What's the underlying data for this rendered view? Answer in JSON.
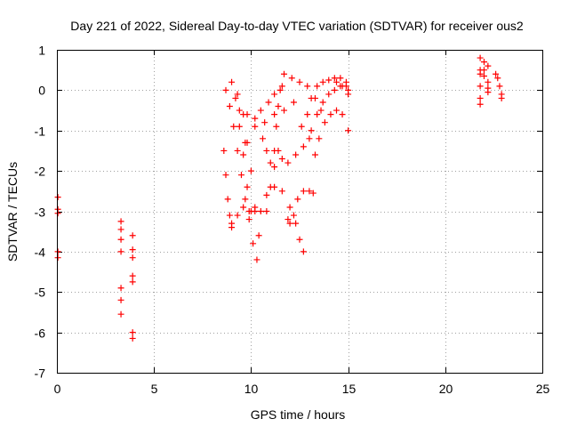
{
  "chart_data": {
    "type": "scatter",
    "title": "Day 221 of 2022, Sidereal Day-to-day VTEC variation (SDTVAR) for receiver ous2",
    "xlabel": "GPS time / hours",
    "ylabel": "SDTVAR / TECUs",
    "xlim": [
      0,
      25
    ],
    "ylim": [
      -7,
      1
    ],
    "xticks": [
      0,
      5,
      10,
      15,
      20,
      25
    ],
    "yticks": [
      -7,
      -6,
      -5,
      -4,
      -3,
      -2,
      -1,
      0,
      1
    ],
    "grid": true,
    "marker": "plus",
    "color": "#ff0000",
    "series": [
      {
        "points": [
          [
            0.05,
            -2.65
          ],
          [
            0.05,
            -2.95
          ],
          [
            0.05,
            -3.05
          ],
          [
            0.05,
            -4.0
          ],
          [
            0.05,
            -4.15
          ],
          [
            3.3,
            -3.25
          ],
          [
            3.3,
            -3.45
          ],
          [
            3.3,
            -3.7
          ],
          [
            3.3,
            -4.0
          ],
          [
            3.3,
            -4.9
          ],
          [
            3.3,
            -5.2
          ],
          [
            3.3,
            -5.55
          ],
          [
            3.9,
            -3.6
          ],
          [
            3.9,
            -3.95
          ],
          [
            3.9,
            -4.15
          ],
          [
            3.9,
            -4.6
          ],
          [
            3.9,
            -4.75
          ],
          [
            3.9,
            -6.0
          ],
          [
            3.9,
            -6.15
          ],
          [
            8.6,
            -1.5
          ],
          [
            8.7,
            -2.1
          ],
          [
            8.8,
            -2.7
          ],
          [
            8.9,
            -3.1
          ],
          [
            9.0,
            -3.4
          ],
          [
            8.7,
            0.0
          ],
          [
            8.9,
            -0.4
          ],
          [
            9.1,
            -0.9
          ],
          [
            9.3,
            -1.5
          ],
          [
            9.5,
            -2.1
          ],
          [
            9.7,
            -2.7
          ],
          [
            9.9,
            -3.2
          ],
          [
            10.1,
            -3.8
          ],
          [
            10.3,
            -4.2
          ],
          [
            9.0,
            0.2
          ],
          [
            9.3,
            -0.1
          ],
          [
            9.6,
            -0.6
          ],
          [
            9.8,
            -1.3
          ],
          [
            10.0,
            -2.0
          ],
          [
            10.2,
            -2.9
          ],
          [
            10.4,
            -3.6
          ],
          [
            9.2,
            -0.2
          ],
          [
            9.4,
            -0.9
          ],
          [
            9.6,
            -1.6
          ],
          [
            9.8,
            -2.4
          ],
          [
            10.0,
            -3.0
          ],
          [
            9.0,
            -3.3
          ],
          [
            9.3,
            -3.1
          ],
          [
            9.6,
            -2.9
          ],
          [
            9.9,
            -3.0
          ],
          [
            10.2,
            -3.0
          ],
          [
            10.5,
            -3.0
          ],
          [
            10.8,
            -2.6
          ],
          [
            11.2,
            -2.4
          ],
          [
            11.6,
            -2.5
          ],
          [
            12.0,
            -2.9
          ],
          [
            12.3,
            -3.3
          ],
          [
            12.5,
            -3.7
          ],
          [
            12.7,
            -4.0
          ],
          [
            10.8,
            -3.0
          ],
          [
            11.0,
            -2.4
          ],
          [
            11.2,
            -1.5
          ],
          [
            11.3,
            -0.9
          ],
          [
            11.4,
            -0.4
          ],
          [
            11.5,
            0.0
          ],
          [
            11.9,
            -3.2
          ],
          [
            12.0,
            -3.3
          ],
          [
            12.2,
            -3.1
          ],
          [
            12.4,
            -2.7
          ],
          [
            12.7,
            -2.5
          ],
          [
            13.0,
            -2.5
          ],
          [
            13.2,
            -2.55
          ],
          [
            11.7,
            0.4
          ],
          [
            12.1,
            0.3
          ],
          [
            12.5,
            0.2
          ],
          [
            12.9,
            0.1
          ],
          [
            13.3,
            -0.2
          ],
          [
            13.6,
            -0.5
          ],
          [
            9.4,
            -0.5
          ],
          [
            9.8,
            -0.6
          ],
          [
            10.2,
            -0.7
          ],
          [
            10.5,
            -0.5
          ],
          [
            10.9,
            -0.3
          ],
          [
            11.2,
            -0.1
          ],
          [
            11.6,
            0.1
          ],
          [
            9.7,
            -1.3
          ],
          [
            10.2,
            -0.9
          ],
          [
            10.7,
            -0.8
          ],
          [
            11.2,
            -0.6
          ],
          [
            11.7,
            -0.5
          ],
          [
            12.2,
            -0.3
          ],
          [
            10.6,
            -1.2
          ],
          [
            10.8,
            -1.5
          ],
          [
            11.0,
            -1.8
          ],
          [
            11.2,
            -1.9
          ],
          [
            11.4,
            -1.5
          ],
          [
            11.6,
            -1.7
          ],
          [
            11.9,
            -1.8
          ],
          [
            12.3,
            -1.6
          ],
          [
            12.7,
            -1.4
          ],
          [
            13.0,
            -1.2
          ],
          [
            13.3,
            -1.6
          ],
          [
            12.6,
            -0.9
          ],
          [
            12.9,
            -0.6
          ],
          [
            13.1,
            -0.2
          ],
          [
            13.4,
            0.1
          ],
          [
            13.7,
            0.2
          ],
          [
            14.0,
            0.25
          ],
          [
            14.3,
            0.3
          ],
          [
            14.6,
            0.3
          ],
          [
            14.9,
            0.2
          ],
          [
            13.1,
            -1.0
          ],
          [
            13.4,
            -0.6
          ],
          [
            13.7,
            -0.3
          ],
          [
            14.0,
            -0.1
          ],
          [
            14.3,
            0.0
          ],
          [
            14.6,
            0.1
          ],
          [
            14.9,
            0.1
          ],
          [
            13.5,
            -1.2
          ],
          [
            13.8,
            -0.8
          ],
          [
            14.1,
            -0.6
          ],
          [
            14.4,
            -0.5
          ],
          [
            14.7,
            -0.6
          ],
          [
            15.0,
            -1.0
          ],
          [
            14.4,
            0.2
          ],
          [
            14.7,
            0.1
          ],
          [
            15.0,
            0.0
          ],
          [
            15.0,
            -0.1
          ],
          [
            21.8,
            0.8
          ],
          [
            21.8,
            0.5
          ],
          [
            21.8,
            0.4
          ],
          [
            21.8,
            0.1
          ],
          [
            21.8,
            -0.2
          ],
          [
            21.8,
            -0.35
          ],
          [
            22.0,
            0.7
          ],
          [
            22.0,
            0.5
          ],
          [
            22.0,
            0.35
          ],
          [
            22.2,
            0.6
          ],
          [
            22.2,
            0.2
          ],
          [
            22.2,
            0.05
          ],
          [
            22.2,
            -0.05
          ],
          [
            22.6,
            0.4
          ],
          [
            22.7,
            0.3
          ],
          [
            22.8,
            0.1
          ],
          [
            22.9,
            -0.1
          ],
          [
            22.9,
            -0.2
          ]
        ]
      }
    ]
  }
}
